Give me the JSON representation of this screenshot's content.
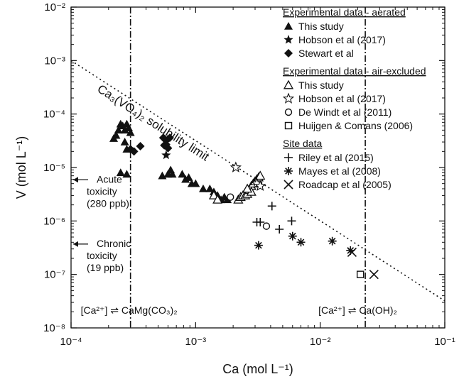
{
  "chart_data": {
    "type": "scatter",
    "x_scale": "log",
    "y_scale": "log",
    "xlim": [
      0.0001,
      0.1
    ],
    "ylim": [
      1e-08,
      0.01
    ],
    "xlabel": "Ca (mol L⁻¹)",
    "ylabel": "V (mol L⁻¹)",
    "x_ticks": [
      {
        "value": 0.0001,
        "label": "10⁻⁴"
      },
      {
        "value": 0.001,
        "label": "10⁻³"
      },
      {
        "value": 0.01,
        "label": "10⁻²"
      },
      {
        "value": 0.1,
        "label": "10⁻¹"
      }
    ],
    "y_ticks": [
      {
        "value": 0.01,
        "label": "10⁻²"
      },
      {
        "value": 0.001,
        "label": "10⁻³"
      },
      {
        "value": 0.0001,
        "label": "10⁻⁴"
      },
      {
        "value": 1e-05,
        "label": "10⁻⁵"
      },
      {
        "value": 1e-06,
        "label": "10⁻⁶"
      },
      {
        "value": 1e-07,
        "label": "10⁻⁷"
      },
      {
        "value": 1e-08,
        "label": "10⁻⁸"
      }
    ],
    "grid": false,
    "legend_position": "top-right",
    "legend": {
      "groups": [
        {
          "heading": "Experimental data - aerated",
          "entries": [
            {
              "marker": "triangle-filled",
              "label": "This study"
            },
            {
              "marker": "star-filled",
              "label": "Hobson et al (2017)"
            },
            {
              "marker": "diamond-filled",
              "label": "Stewart et al"
            }
          ]
        },
        {
          "heading": "Experimental data - air-excluded",
          "entries": [
            {
              "marker": "triangle-open",
              "label": "This study"
            },
            {
              "marker": "star-open",
              "label": "Hobson et al (2017)"
            },
            {
              "marker": "circle-open",
              "label": "De Windt et al (2011)"
            },
            {
              "marker": "square-open",
              "label": "Huijgen & Comans (2006)"
            }
          ]
        },
        {
          "heading": "Site data",
          "entries": [
            {
              "marker": "plus",
              "label": "Riley et al (2015)"
            },
            {
              "marker": "asterisk",
              "label": "Mayes et al (2008)"
            },
            {
              "marker": "cross",
              "label": "Roadcap et al (2005)"
            }
          ]
        }
      ]
    },
    "series": [
      {
        "name": "This study (aerated)",
        "marker": "triangle-filled",
        "points": [
          [
            0.00022,
            3.5e-05
          ],
          [
            0.00023,
            4e-05
          ],
          [
            0.00024,
            5e-05
          ],
          [
            0.00025,
            6.5e-05
          ],
          [
            0.00026,
            6e-05
          ],
          [
            0.00027,
            5e-05
          ],
          [
            0.00028,
            6.5e-05
          ],
          [
            0.00029,
            5.5e-05
          ],
          [
            0.0003,
            4.5e-05
          ],
          [
            0.00027,
            3e-05
          ],
          [
            0.00028,
            2.2e-05
          ],
          [
            0.00025,
            8e-06
          ],
          [
            0.00028,
            7.5e-06
          ],
          [
            0.00054,
            7e-06
          ],
          [
            0.0006,
            7.5e-06
          ],
          [
            0.00063,
            9e-06
          ],
          [
            0.00065,
            7.5e-06
          ],
          [
            0.00078,
            7.5e-06
          ],
          [
            0.00083,
            6e-06
          ],
          [
            0.00088,
            6.5e-06
          ],
          [
            0.00093,
            5e-06
          ],
          [
            0.001,
            5e-06
          ],
          [
            0.00115,
            4e-06
          ],
          [
            0.0013,
            4e-06
          ],
          [
            0.0014,
            3.5e-06
          ],
          [
            0.0015,
            3e-06
          ],
          [
            0.0016,
            2.5e-06
          ],
          [
            0.0017,
            2.8e-06
          ],
          [
            0.0018,
            2.5e-06
          ]
        ]
      },
      {
        "name": "Hobson et al (2017) (aerated)",
        "marker": "star-filled",
        "points": [
          [
            0.00058,
            1.7e-05
          ]
        ]
      },
      {
        "name": "Stewart et al",
        "marker": "diamond-filled",
        "points": [
          [
            0.0003,
            2.2e-05
          ],
          [
            0.00032,
            2e-05
          ],
          [
            0.00036,
            2.5e-05
          ],
          [
            0.00055,
            3.6e-05
          ],
          [
            0.00058,
            3.2e-05
          ],
          [
            0.00062,
            3.6e-05
          ],
          [
            0.00056,
            2.6e-05
          ],
          [
            0.0006,
            2.3e-05
          ],
          [
            0.00058,
            2.7e-05
          ]
        ]
      },
      {
        "name": "This study (air-excluded)",
        "marker": "triangle-open",
        "points": [
          [
            0.0014,
            3e-06
          ],
          [
            0.0015,
            2.5e-06
          ],
          [
            0.0022,
            2.5e-06
          ],
          [
            0.0023,
            2.8e-06
          ],
          [
            0.0024,
            3e-06
          ],
          [
            0.0025,
            3e-06
          ],
          [
            0.0026,
            3.2e-06
          ],
          [
            0.0027,
            3.8e-06
          ],
          [
            0.0028,
            4.5e-06
          ],
          [
            0.0029,
            5e-06
          ],
          [
            0.003,
            5.5e-06
          ],
          [
            0.0031,
            6e-06
          ],
          [
            0.0032,
            6.5e-06
          ],
          [
            0.0033,
            7e-06
          ],
          [
            0.0028,
            3.5e-06
          ],
          [
            0.0026,
            4e-06
          ]
        ]
      },
      {
        "name": "Hobson et al (2017) (air-excluded)",
        "marker": "star-open",
        "points": [
          [
            0.0021,
            1e-05
          ],
          [
            0.0031,
            5e-06
          ],
          [
            0.0033,
            4.5e-06
          ]
        ]
      },
      {
        "name": "De Windt et al (2011)",
        "marker": "circle-open",
        "points": [
          [
            0.0019,
            2.8e-06
          ],
          [
            0.0037,
            8e-07
          ]
        ]
      },
      {
        "name": "Huijgen & Comans (2006)",
        "marker": "square-open",
        "points": [
          [
            0.021,
            1e-07
          ]
        ]
      },
      {
        "name": "Riley et al (2015)",
        "marker": "plus",
        "points": [
          [
            0.0031,
            9.5e-07
          ],
          [
            0.0033,
            9.5e-07
          ],
          [
            0.0041,
            1.9e-06
          ],
          [
            0.0047,
            7e-07
          ],
          [
            0.0059,
            1e-06
          ]
        ]
      },
      {
        "name": "Mayes et al (2008)",
        "marker": "asterisk",
        "points": [
          [
            0.0032,
            3.5e-07
          ],
          [
            0.006,
            5.2e-07
          ],
          [
            0.007,
            4e-07
          ],
          [
            0.0125,
            4.2e-07
          ],
          [
            0.0175,
            2.8e-07
          ]
        ]
      },
      {
        "name": "Roadcap et al (2005)",
        "marker": "cross",
        "points": [
          [
            0.018,
            2.6e-07
          ],
          [
            0.027,
            1e-07
          ]
        ]
      }
    ],
    "reference_lines": [
      {
        "kind": "dotted",
        "label_base": "Ca₃(VO₄)₂",
        "label_suffix": " solubility limit",
        "from": [
          0.0001,
          0.001
        ],
        "to": [
          0.1,
          3.2e-08
        ]
      },
      {
        "kind": "dash-dot-vertical",
        "x": 0.0003,
        "annotation": "[Ca²⁺] ⇌ CaMg(CO₃)₂"
      },
      {
        "kind": "dash-dot-vertical",
        "x": 0.023,
        "annotation": "[Ca²⁺] ⇌ Ca(OH)₂"
      }
    ],
    "annotations": [
      {
        "y": 5.9e-06,
        "lines": [
          "Acute",
          "toxicity",
          "(280 ppb)"
        ]
      },
      {
        "y": 3.7e-07,
        "lines": [
          "Chronic",
          "toxicity",
          "(19 ppb)"
        ]
      }
    ]
  }
}
